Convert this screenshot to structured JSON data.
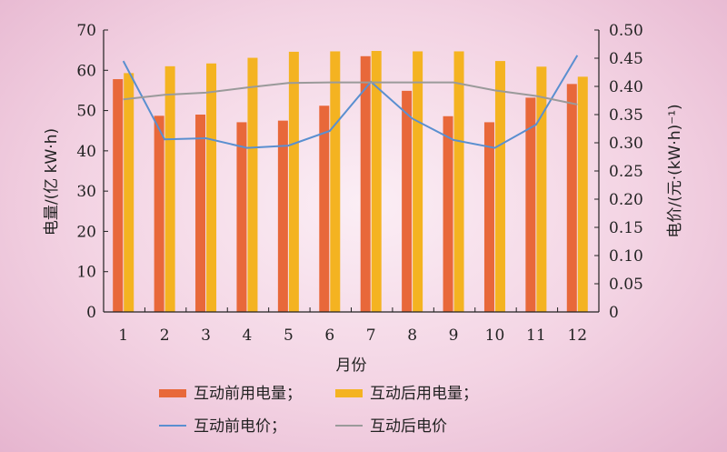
{
  "chart_data": {
    "type": "bar+line",
    "categories": [
      "1",
      "2",
      "3",
      "4",
      "5",
      "6",
      "7",
      "8",
      "9",
      "10",
      "11",
      "12"
    ],
    "xlabel": "月份",
    "ylabel_left": "电量/(亿 kW·h)",
    "ylabel_right": "电价/(元·(kW·h)⁻¹)",
    "ylim_left": [
      0,
      70
    ],
    "yticks_left": [
      "0",
      "10",
      "20",
      "30",
      "40",
      "50",
      "60",
      "70"
    ],
    "ylim_right": [
      0,
      0.5
    ],
    "yticks_right": [
      "0",
      "0.05",
      "0.10",
      "0.15",
      "0.20",
      "0.25",
      "0.30",
      "0.35",
      "0.40",
      "0.45",
      "0.50"
    ],
    "series": [
      {
        "name": "互动前用电量；",
        "kind": "bar",
        "axis": "left",
        "color": "#e8683a",
        "values": [
          57.8,
          48.7,
          49.0,
          47.1,
          47.5,
          51.2,
          63.5,
          54.9,
          48.6,
          47.1,
          53.2,
          56.6
        ]
      },
      {
        "name": "互动后用电量；",
        "kind": "bar",
        "axis": "left",
        "color": "#f4b321",
        "values": [
          59.3,
          61.0,
          61.7,
          63.1,
          64.6,
          64.7,
          64.8,
          64.7,
          64.7,
          62.3,
          60.9,
          58.4
        ]
      },
      {
        "name": "互动前电价；",
        "kind": "line",
        "axis": "right",
        "color": "#5a8fd0",
        "values": [
          0.445,
          0.306,
          0.308,
          0.291,
          0.295,
          0.321,
          0.408,
          0.343,
          0.305,
          0.291,
          0.332,
          0.455
        ]
      },
      {
        "name": "互动后电价",
        "kind": "line",
        "axis": "right",
        "color": "#9a9a9a",
        "values": [
          0.377,
          0.385,
          0.389,
          0.398,
          0.406,
          0.407,
          0.407,
          0.407,
          0.407,
          0.393,
          0.383,
          0.368
        ]
      }
    ],
    "grid": false,
    "legend_position": "bottom"
  }
}
